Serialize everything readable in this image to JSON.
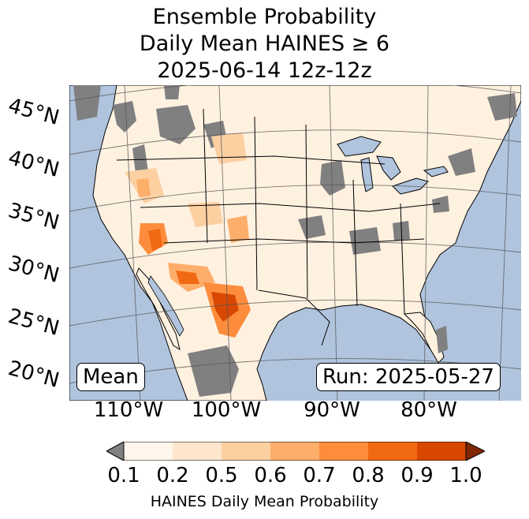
{
  "title": {
    "line1": "Ensemble Probability",
    "line2": "Daily Mean HAINES ≥ 6",
    "line3": "2025-06-14 12z-12z"
  },
  "map": {
    "lat_labels": [
      "45°N",
      "40°N",
      "35°N",
      "30°N",
      "25°N",
      "20°N"
    ],
    "lon_labels": [
      "110°W",
      "100°W",
      "90°W",
      "80°W"
    ],
    "stat_label": "Mean",
    "run_label": "Run: 2025-05-27",
    "colors": {
      "ocean": "#b0c4de",
      "land": "#fff1e0",
      "missing": "#808080",
      "borders": "#000000",
      "gridlines": "#555555"
    }
  },
  "colorbar": {
    "label": "HAINES Daily Mean Probability",
    "ticks": [
      "0.1",
      "0.2",
      "0.5",
      "0.6",
      "0.7",
      "0.8",
      "0.9",
      "1.0"
    ],
    "under_color": "#808080",
    "over_color": "#7f2704",
    "colors": [
      "#fff5eb",
      "#fee6ce",
      "#fdd0a2",
      "#fdae6b",
      "#fd8d3c",
      "#f16913",
      "#d94801"
    ]
  }
}
